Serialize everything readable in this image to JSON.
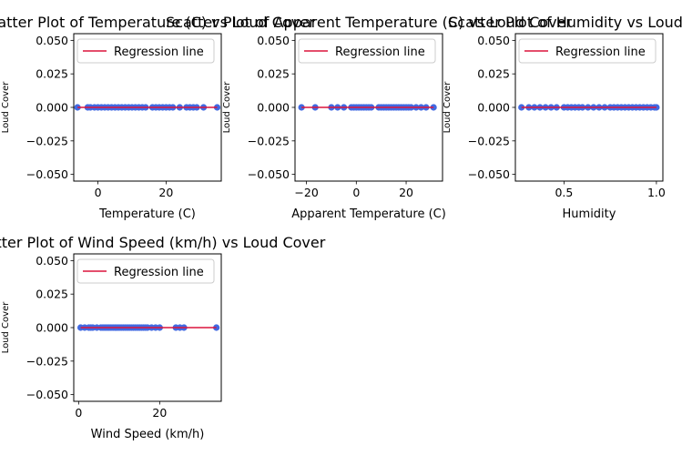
{
  "colors": {
    "points": "#4169e1",
    "line": "#dc143c"
  },
  "chart_data": [
    {
      "type": "scatter",
      "title": "Scatter Plot of Temperature (C) vs Loud Cover",
      "xlabel": "Temperature (C)",
      "ylabel": "Loud Cover",
      "xlim": [
        -7.1,
        36.2
      ],
      "ylim": [
        -0.055,
        0.055
      ],
      "xticks": [
        0,
        20
      ],
      "yticks": [
        -0.05,
        -0.025,
        0.0,
        0.025,
        0.05
      ],
      "ytick_labels": [
        "−0.050",
        "−0.025",
        "0.000",
        "0.025",
        "0.050"
      ],
      "legend": {
        "label": "Regression line",
        "position": "top"
      },
      "series": [
        {
          "type": "scatter",
          "x": [
            -6,
            -3,
            -2.2,
            -1,
            0,
            1,
            2,
            3,
            4,
            5,
            6,
            7,
            8,
            9,
            10,
            11,
            12,
            13,
            14,
            16,
            17,
            18,
            19,
            20,
            21,
            22,
            24,
            26,
            27,
            28,
            29,
            31,
            35
          ],
          "y": [
            0,
            0,
            0,
            0,
            0,
            0,
            0,
            0,
            0,
            0,
            0,
            0,
            0,
            0,
            0,
            0,
            0,
            0,
            0,
            0,
            0,
            0,
            0,
            0,
            0,
            0,
            0,
            0,
            0,
            0,
            0,
            0,
            0
          ]
        },
        {
          "type": "line",
          "name": "Regression line",
          "x": [
            -6,
            35
          ],
          "y": [
            0,
            0
          ]
        }
      ]
    },
    {
      "type": "scatter",
      "title": "Scatter Plot of Apparent Temperature (C) vs Loud Cover",
      "xlabel": "Apparent Temperature (C)",
      "ylabel": "Loud Cover",
      "xlim": [
        -24.6,
        34.6
      ],
      "ylim": [
        -0.055,
        0.055
      ],
      "xticks": [
        -20,
        0,
        20
      ],
      "yticks": [
        -0.05,
        -0.025,
        0.0,
        0.025,
        0.05
      ],
      "ytick_labels": [
        "−0.050",
        "−0.025",
        "0.000",
        "0.025",
        "0.050"
      ],
      "legend": {
        "label": "Regression line",
        "position": "top"
      },
      "series": [
        {
          "type": "scatter",
          "x": [
            -22,
            -16.5,
            -10,
            -7.5,
            -5,
            -2,
            -1,
            0,
            1,
            2,
            3,
            4,
            5,
            6,
            9,
            10,
            11,
            12,
            13,
            14,
            15,
            16,
            17,
            18,
            19,
            20,
            21,
            22,
            24,
            26,
            28,
            31
          ],
          "y": [
            0,
            0,
            0,
            0,
            0,
            0,
            0,
            0,
            0,
            0,
            0,
            0,
            0,
            0,
            0,
            0,
            0,
            0,
            0,
            0,
            0,
            0,
            0,
            0,
            0,
            0,
            0,
            0,
            0,
            0,
            0,
            0
          ]
        },
        {
          "type": "line",
          "name": "Regression line",
          "x": [
            -22,
            31
          ],
          "y": [
            0,
            0
          ]
        }
      ]
    },
    {
      "type": "scatter",
      "title": "Scatter Plot of Humidity vs Loud Cover",
      "xlabel": "Humidity",
      "ylabel": "Loud Cover",
      "xlim": [
        0.237,
        1.035
      ],
      "ylim": [
        -0.055,
        0.055
      ],
      "xticks": [
        0.5,
        1.0
      ],
      "yticks": [
        -0.05,
        -0.025,
        0.0,
        0.025,
        0.05
      ],
      "ytick_labels": [
        "−0.050",
        "−0.025",
        "0.000",
        "0.025",
        "0.050"
      ],
      "legend": {
        "label": "Regression line",
        "position": "top"
      },
      "series": [
        {
          "type": "scatter",
          "x": [
            0.27,
            0.31,
            0.34,
            0.37,
            0.4,
            0.43,
            0.46,
            0.5,
            0.52,
            0.54,
            0.56,
            0.58,
            0.6,
            0.63,
            0.66,
            0.69,
            0.72,
            0.75,
            0.77,
            0.79,
            0.81,
            0.83,
            0.85,
            0.87,
            0.89,
            0.91,
            0.93,
            0.95,
            0.97,
            0.99,
            1.0
          ],
          "y": [
            0,
            0,
            0,
            0,
            0,
            0,
            0,
            0,
            0,
            0,
            0,
            0,
            0,
            0,
            0,
            0,
            0,
            0,
            0,
            0,
            0,
            0,
            0,
            0,
            0,
            0,
            0,
            0,
            0,
            0,
            0
          ]
        },
        {
          "type": "line",
          "name": "Regression line",
          "x": [
            0.27,
            1.0
          ],
          "y": [
            0,
            0
          ]
        }
      ]
    },
    {
      "type": "scatter",
      "title": "Scatter Plot of Wind Speed (km/h) vs Loud Cover",
      "xlabel": "Wind Speed (km/h)",
      "ylabel": "Loud Cover",
      "xlim": [
        -1.2,
        35.2
      ],
      "ylim": [
        -0.055,
        0.055
      ],
      "xticks": [
        0,
        20
      ],
      "yticks": [
        -0.05,
        -0.025,
        0.0,
        0.025,
        0.05
      ],
      "ytick_labels": [
        "−0.050",
        "−0.025",
        "0.000",
        "0.025",
        "0.050"
      ],
      "legend": {
        "label": "Regression line",
        "position": "top"
      },
      "series": [
        {
          "type": "scatter",
          "x": [
            0.5,
            1.5,
            2.5,
            3,
            3.5,
            4.5,
            5.5,
            6,
            6.5,
            7,
            7.5,
            8,
            8.5,
            9,
            9.5,
            10,
            10.5,
            11,
            11.5,
            12,
            12.5,
            13,
            13.5,
            14,
            14.5,
            15,
            15.5,
            16,
            16.5,
            17,
            18,
            19,
            20,
            24,
            25,
            26,
            34
          ],
          "y": [
            0,
            0,
            0,
            0,
            0,
            0,
            0,
            0,
            0,
            0,
            0,
            0,
            0,
            0,
            0,
            0,
            0,
            0,
            0,
            0,
            0,
            0,
            0,
            0,
            0,
            0,
            0,
            0,
            0,
            0,
            0,
            0,
            0,
            0,
            0,
            0,
            0
          ]
        },
        {
          "type": "line",
          "name": "Regression line",
          "x": [
            0.5,
            34
          ],
          "y": [
            0,
            0
          ]
        }
      ]
    }
  ]
}
